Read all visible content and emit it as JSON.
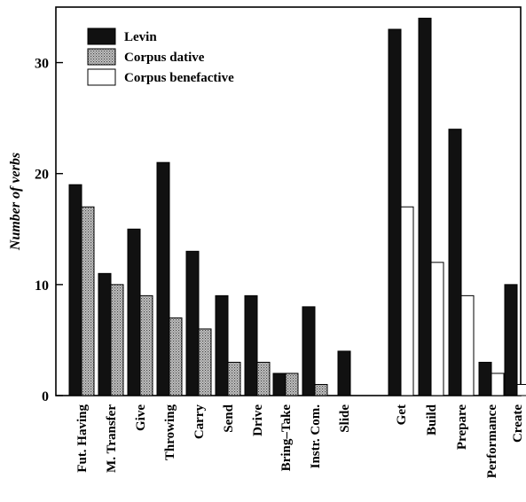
{
  "chart_data": {
    "type": "bar",
    "title": "",
    "xlabel": "",
    "ylabel": "Number of verbs",
    "ylim": [
      0,
      35
    ],
    "yticks": [
      0,
      10,
      20,
      30
    ],
    "grid": false,
    "legend_position": "top-left",
    "categories": [
      "Fut. Having",
      "M. Transfer",
      "Give",
      "Throwing",
      "Carry",
      "Send",
      "Drive",
      "Bring–Take",
      "Instr. Com.",
      "Slide",
      "Get",
      "Build",
      "Prepare",
      "Performance",
      "Create"
    ],
    "series": [
      {
        "name": "Levin",
        "color": "#111111",
        "fill": "solid",
        "values": [
          19,
          11,
          15,
          21,
          13,
          9,
          9,
          2,
          8,
          4,
          33,
          34,
          24,
          3,
          10
        ]
      },
      {
        "name": "Corpus dative",
        "color": "#9a9a9a",
        "fill": "dotted",
        "values": [
          17,
          10,
          9,
          7,
          6,
          3,
          3,
          2,
          1,
          null,
          null,
          null,
          null,
          null,
          null
        ]
      },
      {
        "name": "Corpus benefactive",
        "color": "#ffffff",
        "fill": "white",
        "values": [
          null,
          null,
          null,
          null,
          null,
          null,
          null,
          null,
          null,
          null,
          17,
          12,
          9,
          2,
          1
        ]
      }
    ]
  }
}
